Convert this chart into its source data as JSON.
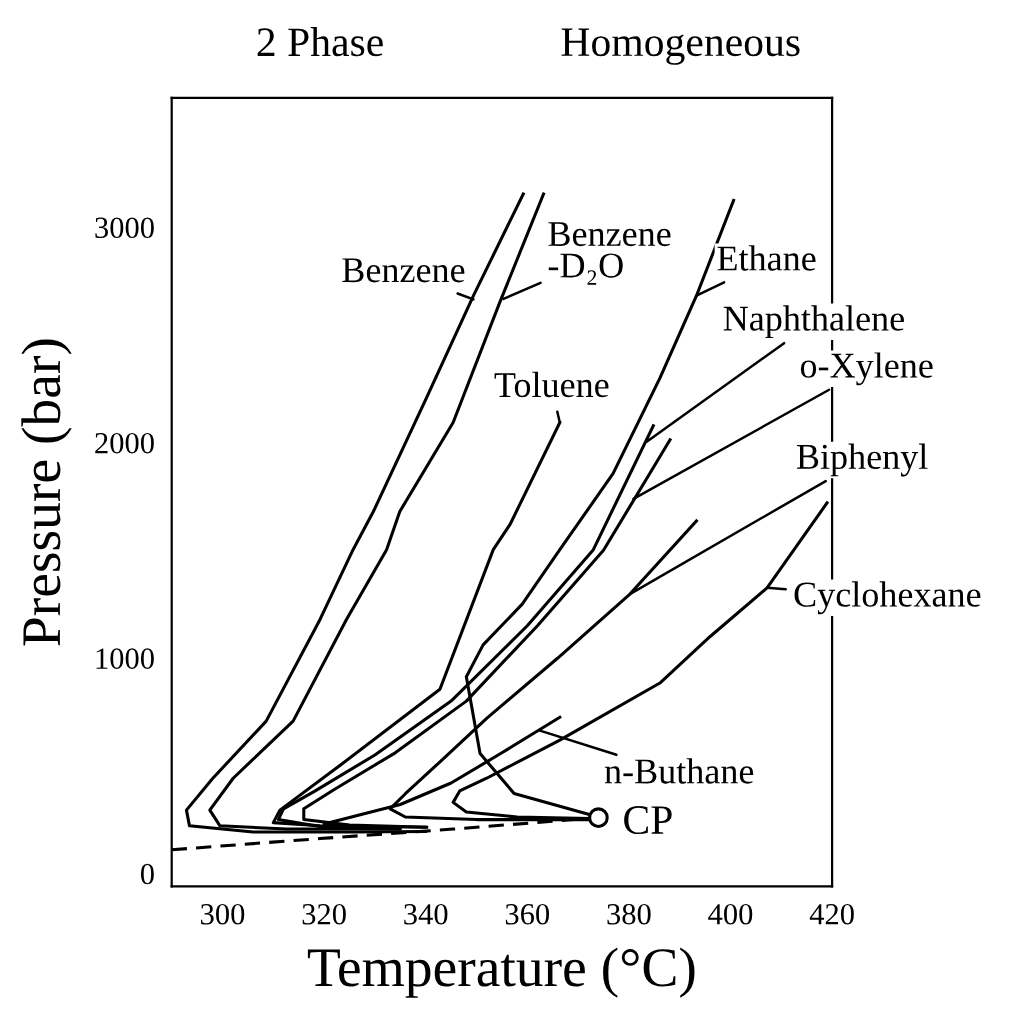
{
  "chart_data": {
    "type": "line",
    "xlabel": "Temperature (°C)",
    "ylabel": "Pressure (bar)",
    "xlim": [
      290,
      420
    ],
    "ylim": [
      -60,
      3600
    ],
    "xticks": [
      300,
      320,
      340,
      360,
      380,
      400,
      420
    ],
    "yticks": [
      0,
      1000,
      2000,
      3000
    ],
    "grid": false,
    "legend": false,
    "marker": "none",
    "line_style": "solid",
    "series": [
      {
        "color": "#000000",
        "x": [
          359.2,
          349.4,
          340.2,
          329.7,
          325.7,
          319.2,
          308.6,
          298.1,
          292.9,
          293.5,
          306,
          325.7,
          340
        ],
        "values": [
          3154,
          2682,
          2210,
          1680,
          1503,
          1179,
          707,
          442,
          294,
          221,
          192,
          192,
          195
        ]
      },
      {
        "color": "#000000",
        "x": [
          363.2,
          354.6,
          345.4,
          334.9,
          332.3,
          324.4,
          313.9,
          302.1,
          297.5,
          299.5,
          312.6,
          334.9
        ],
        "values": [
          3154,
          2652,
          2093,
          1680,
          1503,
          1179,
          707,
          442,
          294,
          221,
          206,
          206
        ]
      },
      {
        "color": "#000000",
        "x": [
          366.4,
          356.6,
          353.3,
          342.8,
          323.1,
          311.3,
          310,
          319.2,
          340.2
        ],
        "values": [
          2093,
          1620,
          1503,
          855,
          501,
          294,
          236,
          221,
          215
        ]
      },
      {
        "color": "#000000",
        "x": [
          400.6,
          393.3,
          386.1,
          376.9,
          366.4,
          359,
          351.3,
          348,
          350.7,
          357.4,
          373.5
        ],
        "values": [
          3124,
          2682,
          2299,
          1857,
          1503,
          1250,
          1061,
          913,
          557,
          371,
          265
        ]
      },
      {
        "color": "#000000",
        "x": [
          384.8,
          373,
          360,
          345,
          330,
          318,
          312,
          311,
          320,
          335
        ],
        "values": [
          2078,
          1503,
          1150,
          800,
          550,
          380,
          300,
          250,
          215,
          210
        ]
      },
      {
        "color": "#000000",
        "x": [
          388.1,
          375,
          362,
          348,
          334,
          322,
          316,
          316,
          325,
          340
        ],
        "values": [
          2013,
          1500,
          1150,
          800,
          560,
          390,
          300,
          250,
          225,
          215
        ]
      },
      {
        "color": "#000000",
        "x": [
          393.3,
          380.2,
          366,
          352,
          342,
          336,
          333,
          336,
          350,
          372
        ],
        "values": [
          1636,
          1297,
          1000,
          720,
          500,
          370,
          300,
          262,
          250,
          250
        ]
      },
      {
        "color": "#000000",
        "x": [
          419,
          407.2,
          396,
          386.1,
          366.4,
          352,
          346.7,
          345.4,
          348,
          358,
          372
        ],
        "values": [
          1720,
          1326,
          1100,
          884,
          619,
          442,
          383,
          330,
          285,
          262,
          255
        ]
      },
      {
        "color": "#000000",
        "x": [
          366.4,
          355,
          345,
          335,
          325,
          320,
          330
        ],
        "values": [
          725,
          560,
          420,
          320,
          260,
          230,
          215
        ]
      },
      {
        "color": "#000000",
        "line_style": "dashed",
        "x": [
          290,
          319.2,
          345.4,
          374
        ],
        "values": [
          110,
          162,
          206,
          259
        ]
      },
      {
        "type": "scatter",
        "color": "#000000",
        "marker": "circle",
        "x": [
          374
        ],
        "values": [
          259
        ]
      }
    ],
    "annotations": [
      {
        "text": "Benzene",
        "x": 349.4,
        "y": 2665
      },
      {
        "text": "Benzene\n-D₂O",
        "x": 355.3,
        "y": 2667
      },
      {
        "text": "Toluene",
        "x": 366.4,
        "y": 2093
      },
      {
        "text": "Ethane",
        "x": 393.3,
        "y": 2682
      },
      {
        "text": "Naphthalene",
        "x": 383.5,
        "y": 2004
      },
      {
        "text": "o-Xylene",
        "x": 380.9,
        "y": 1739
      },
      {
        "text": "Biphenyl",
        "x": 380.2,
        "y": 1297
      },
      {
        "text": "Cyclohexane",
        "x": 407.2,
        "y": 1326
      },
      {
        "text": "n-Buthane",
        "x": 362.5,
        "y": 663
      },
      {
        "text": "CP",
        "x": 374,
        "y": 259
      },
      "2 Phase",
      "Homogeneous"
    ]
  }
}
